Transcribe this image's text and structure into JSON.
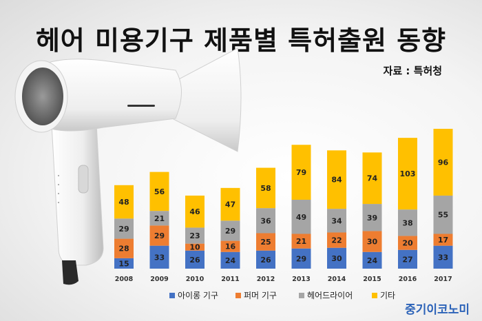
{
  "title": "헤어 미용기구 제품별 특허출원 동향",
  "source": "자료 : 특허청",
  "logo": "중기이코노미",
  "chart_data": {
    "type": "bar",
    "stacked": true,
    "title": "헤어 미용기구 제품별 특허출원 동향",
    "categories": [
      "2008",
      "2009",
      "2010",
      "2011",
      "2012",
      "2013",
      "2014",
      "2015",
      "2016",
      "2017"
    ],
    "series": [
      {
        "name": "아이롱 기구",
        "color": "#4472c4",
        "values": [
          15,
          33,
          26,
          24,
          26,
          29,
          30,
          24,
          27,
          33
        ]
      },
      {
        "name": "퍼머 기구",
        "color": "#ed7d31",
        "values": [
          28,
          29,
          10,
          16,
          25,
          21,
          22,
          30,
          20,
          17
        ]
      },
      {
        "name": "헤어드라이어",
        "color": "#a5a5a5",
        "values": [
          29,
          21,
          23,
          29,
          36,
          49,
          34,
          39,
          38,
          55
        ]
      },
      {
        "name": "기타",
        "color": "#ffc000",
        "values": [
          48,
          56,
          46,
          47,
          58,
          79,
          84,
          74,
          103,
          96
        ]
      }
    ],
    "legend_position": "bottom",
    "grid": false
  }
}
